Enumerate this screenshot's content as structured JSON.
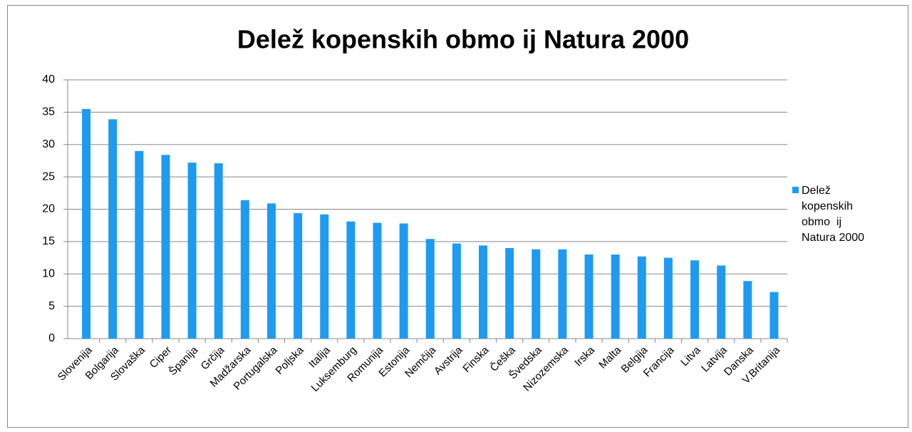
{
  "chart_data": {
    "type": "bar",
    "title": "Delež kopenskih obmo  ij Natura 2000",
    "categories": [
      "Slovenija",
      "Bolgarija",
      "Slovaška",
      "Ciper",
      "Španija",
      "Grčija",
      "Madžarska",
      "Portugalska",
      "Poljska",
      "Italija",
      "Luksemburg",
      "Romunija",
      "Estonija",
      "Nemčija",
      "Avstrija",
      "Finska",
      "Češka",
      "Švedska",
      "Nizozemska",
      "Irska",
      "Malta",
      "Belgija",
      "Francija",
      "Litva",
      "Latvija",
      "Danska",
      "V.Britanija"
    ],
    "series": [
      {
        "name": "Delež kopenskih obmo  ij Natura 2000",
        "color": "#1e9bf0",
        "values": [
          35.5,
          33.9,
          29,
          28.4,
          27.2,
          27.1,
          21.4,
          20.9,
          19.4,
          19.2,
          18.1,
          17.9,
          17.8,
          15.4,
          14.7,
          14.4,
          14.0,
          13.8,
          13.8,
          13.0,
          13.0,
          12.7,
          12.5,
          12.1,
          11.3,
          8.9,
          7.2
        ]
      }
    ],
    "ylim": [
      0,
      40
    ],
    "yticks": [
      0,
      5,
      10,
      15,
      20,
      25,
      30,
      35,
      40
    ],
    "grid": true,
    "legend": "right"
  }
}
